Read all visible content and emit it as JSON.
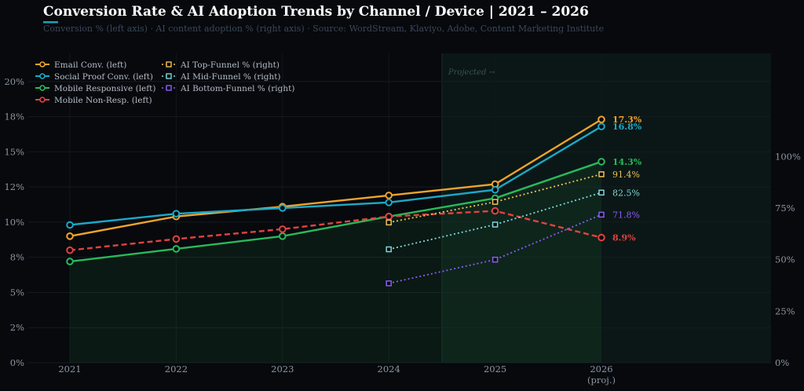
{
  "title": "Conversion Rate & AI Adoption Trends by Channel / Device  |  2021 – 2026",
  "subtitle": "Conversion % (left axis)  ·  AI content adoption % (right axis)  ·  Source: WordStream, Klaviyo, Adobe, Content Marketing Institute",
  "colors": {
    "background": "#07090d",
    "title_accent": "#17a2b8",
    "projection_band": "#0b1716"
  },
  "chart_data": {
    "type": "line",
    "x": [
      2021,
      2022,
      2023,
      2024,
      2025,
      2026
    ],
    "x_tick_labels": [
      "2021",
      "2022",
      "2023",
      "2024",
      "2025",
      "2026"
    ],
    "x_tick_sublabel": "(proj.)",
    "y_left_ticks": [
      "0%",
      "2%",
      "5%",
      "8%",
      "10%",
      "12%",
      "15%",
      "18%",
      "20%"
    ],
    "y_left_range": [
      0,
      22
    ],
    "y_right_ticks": [
      "0%",
      "25%",
      "50%",
      "75%",
      "100%"
    ],
    "y_right_range": [
      0,
      150
    ],
    "projection_start": 2024.5,
    "projection_label": "Projected →",
    "grid": true,
    "legend_position": "top-left",
    "series": [
      {
        "name": "Email Conv. (left)",
        "axis": "left",
        "color": "#f0a42b",
        "style": "solid",
        "marker": "circle",
        "x": [
          2021,
          2022,
          2023,
          2024,
          2025,
          2026
        ],
        "values": [
          9.0,
          10.4,
          11.1,
          11.9,
          12.7,
          17.3
        ],
        "end_label": "17.3%"
      },
      {
        "name": "Social Proof Conv. (left)",
        "axis": "left",
        "color": "#1ba9c7",
        "style": "solid",
        "marker": "circle",
        "x": [
          2021,
          2022,
          2023,
          2024,
          2025,
          2026
        ],
        "values": [
          9.8,
          10.6,
          11.0,
          11.4,
          12.3,
          16.8
        ],
        "end_label": "16.8%"
      },
      {
        "name": "Mobile Responsive (left)",
        "axis": "left",
        "color": "#29b95c",
        "style": "solid",
        "marker": "circle",
        "x": [
          2021,
          2022,
          2023,
          2024,
          2025,
          2026
        ],
        "values": [
          7.2,
          8.1,
          9.0,
          10.4,
          11.7,
          14.3
        ],
        "end_label": "14.3%",
        "fill": true
      },
      {
        "name": "Mobile Non-Resp. (left)",
        "axis": "left",
        "color": "#e0433f",
        "style": "dashed",
        "marker": "circle",
        "x": [
          2021,
          2022,
          2023,
          2024,
          2025,
          2026
        ],
        "values": [
          8.0,
          8.8,
          9.5,
          10.4,
          10.8,
          8.9
        ],
        "end_label": "8.9%"
      },
      {
        "name": "AI Top-Funnel % (right)",
        "axis": "right",
        "color": "#f0c05a",
        "style": "dotted",
        "marker": "square",
        "x": [
          2024,
          2025,
          2026
        ],
        "values": [
          68,
          78,
          91.4
        ],
        "end_label": "91.4%"
      },
      {
        "name": "AI Mid-Funnel % (right)",
        "axis": "right",
        "color": "#7fd6d9",
        "style": "dotted",
        "marker": "square",
        "x": [
          2024,
          2025,
          2026
        ],
        "values": [
          55,
          67,
          82.5
        ],
        "end_label": "82.5%"
      },
      {
        "name": "AI Bottom-Funnel % (right)",
        "axis": "right",
        "color": "#8b5cf6",
        "style": "dotted",
        "marker": "square",
        "x": [
          2024,
          2025,
          2026
        ],
        "values": [
          38.5,
          50,
          71.8
        ],
        "end_label": "71.8%"
      }
    ]
  }
}
